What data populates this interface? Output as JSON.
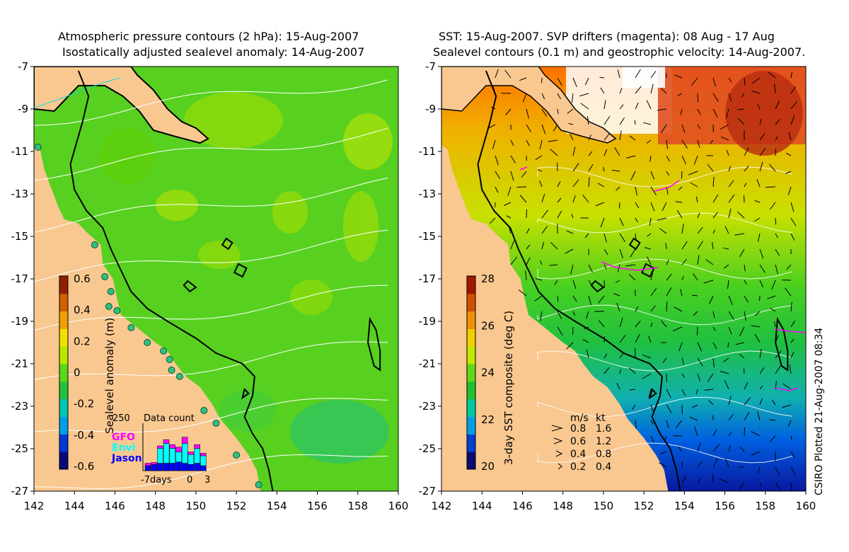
{
  "left_panel": {
    "title_line1": "Atmospheric pressure contours (2 hPa): 15-Aug-2007",
    "title_line2": "Isostatically adjusted sealevel anomaly: 14-Aug-2007",
    "colorbar": {
      "label": "Sealevel anomaly (m)",
      "ticks": [
        "0.6",
        "0.4",
        "0.2",
        "0",
        "-0.2",
        "-0.4",
        "-0.6"
      ],
      "colors": [
        "#08087a",
        "#0038d8",
        "#00a0e8",
        "#00c8b0",
        "#22c040",
        "#58d818",
        "#b8e800",
        "#f0e000",
        "#f0a000",
        "#d06000",
        "#902000"
      ]
    },
    "inset": {
      "title": "Data count",
      "ymax_label": "250",
      "legend": [
        {
          "label": "GFO",
          "color": "#ff00ff"
        },
        {
          "label": "Envi",
          "color": "#00ffff"
        },
        {
          "label": "Jason",
          "color": "#0000ff"
        }
      ],
      "x_left": "-7days",
      "x_mid": "0",
      "x_right": "3",
      "bars": [
        {
          "jason": 20,
          "envi": 0,
          "gfo": 10
        },
        {
          "jason": 25,
          "envi": 0,
          "gfo": 8
        },
        {
          "jason": 30,
          "envi": 60,
          "gfo": 10
        },
        {
          "jason": 30,
          "envi": 80,
          "gfo": 15
        },
        {
          "jason": 30,
          "envi": 60,
          "gfo": 15
        },
        {
          "jason": 35,
          "envi": 40,
          "gfo": 20
        },
        {
          "jason": 30,
          "envi": 80,
          "gfo": 25
        },
        {
          "jason": 25,
          "envi": 40,
          "gfo": 10
        },
        {
          "jason": 30,
          "envi": 60,
          "gfo": 15
        },
        {
          "jason": 20,
          "envi": 40,
          "gfo": 10
        }
      ]
    }
  },
  "right_panel": {
    "title_line1": "SST: 15-Aug-2007. SVP drifters (magenta): 08 Aug - 17 Aug",
    "title_line2": "Sealevel contours (0.1 m) and geostrophic velocity: 14-Aug-2007.",
    "colorbar": {
      "label": "3-day SST composite (deg C)",
      "ticks": [
        "28",
        "26",
        "24",
        "22",
        "20"
      ],
      "colors": [
        "#0a0a70",
        "#0040d0",
        "#00a0e0",
        "#00c8a0",
        "#20c030",
        "#60d818",
        "#c0e800",
        "#f0d000",
        "#f09000",
        "#d05000",
        "#a01800"
      ]
    },
    "velocity_legend": {
      "header_ms": "m/s",
      "header_kt": "kt",
      "rows": [
        {
          "ms": "0.8",
          "kt": "1.6"
        },
        {
          "ms": "0.6",
          "kt": "1.2"
        },
        {
          "ms": "0.4",
          "kt": "0.8"
        },
        {
          "ms": "0.2",
          "kt": "0.4"
        }
      ]
    }
  },
  "axes": {
    "x_ticks": [
      "142",
      "144",
      "146",
      "148",
      "150",
      "152",
      "154",
      "156",
      "158",
      "160"
    ],
    "y_ticks": [
      "-7",
      "-9",
      "-11",
      "-13",
      "-15",
      "-17",
      "-19",
      "-21",
      "-23",
      "-25",
      "-27"
    ]
  },
  "credit": "CSIRO Plotted 21-Aug-2007 08:34",
  "colors": {
    "land": "#f8c890",
    "ocean_left": "#58d020",
    "ocean_right": "#30c830",
    "coast": "#000000",
    "contour": "#ffffff",
    "drifter": "#ff00ff"
  }
}
